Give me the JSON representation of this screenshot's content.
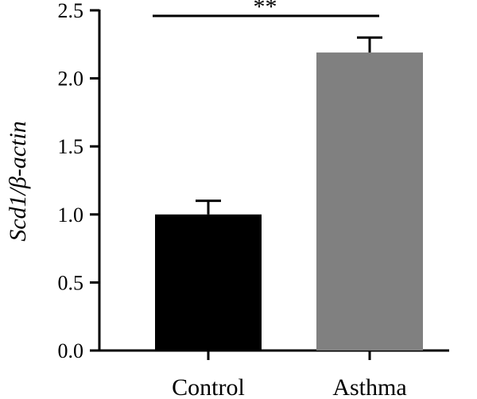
{
  "chart_data": {
    "type": "bar",
    "categories": [
      "Control",
      "Asthma"
    ],
    "values": [
      1.0,
      2.19
    ],
    "errors": [
      0.1,
      0.11
    ],
    "title": "",
    "xlabel": "",
    "ylabel": "Scd1/β-actin",
    "ylim": [
      0,
      2.5
    ],
    "yticks": [
      "0.0",
      "0.5",
      "1.0",
      "1.5",
      "2.0",
      "2.5"
    ],
    "grid": false,
    "significance": {
      "label": "**",
      "between": [
        "Control",
        "Asthma"
      ]
    },
    "colors": {
      "Control": "#000000",
      "Asthma": "#808080"
    }
  }
}
